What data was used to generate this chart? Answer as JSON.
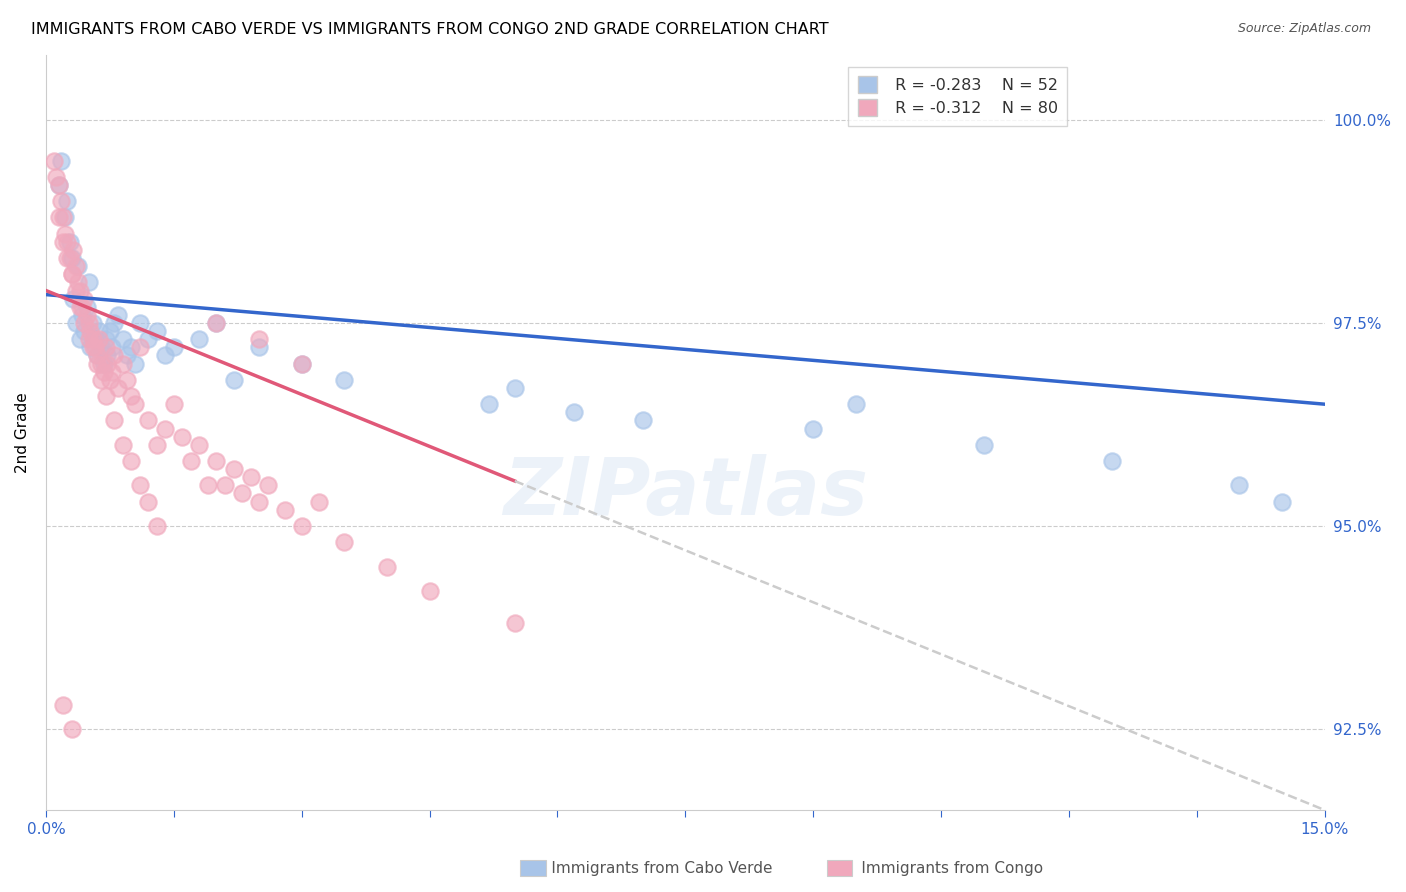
{
  "title": "IMMIGRANTS FROM CABO VERDE VS IMMIGRANTS FROM CONGO 2ND GRADE CORRELATION CHART",
  "source": "Source: ZipAtlas.com",
  "ylabel": "2nd Grade",
  "xmin": 0.0,
  "xmax": 15.0,
  "ymin": 91.5,
  "ymax": 100.8,
  "yticks": [
    92.5,
    95.0,
    97.5,
    100.0
  ],
  "yticklabels": [
    "92.5%",
    "95.0%",
    "97.5%",
    "100.0%"
  ],
  "legend_r_cabo": "-0.283",
  "legend_n_cabo": "52",
  "legend_r_congo": "-0.312",
  "legend_n_congo": "80",
  "cabo_verde_color": "#a8c4e8",
  "congo_color": "#f0a8bc",
  "trend_cabo_color": "#3366cc",
  "trend_congo_color": "#e05878",
  "trend_dashed_color": "#cccccc",
  "background_color": "#ffffff",
  "watermark": "ZIPatlas",
  "cabo_trend_x0": 0.0,
  "cabo_trend_y0": 97.85,
  "cabo_trend_x1": 15.0,
  "cabo_trend_y1": 96.5,
  "congo_trend_x0": 0.0,
  "congo_trend_y0": 97.9,
  "congo_trend_x1": 15.0,
  "congo_trend_y1": 91.5,
  "congo_solid_xmax": 5.5,
  "cabo_x": [
    0.15,
    0.18,
    0.22,
    0.25,
    0.28,
    0.3,
    0.32,
    0.35,
    0.38,
    0.4,
    0.42,
    0.45,
    0.48,
    0.5,
    0.52,
    0.55,
    0.58,
    0.6,
    0.62,
    0.65,
    0.68,
    0.7,
    0.72,
    0.75,
    0.78,
    0.8,
    0.85,
    0.9,
    0.95,
    1.0,
    1.05,
    1.1,
    1.2,
    1.3,
    1.4,
    1.5,
    1.8,
    2.0,
    2.2,
    2.5,
    3.0,
    3.5,
    5.2,
    5.5,
    6.2,
    7.0,
    9.0,
    9.5,
    11.0,
    12.5,
    14.0,
    14.5
  ],
  "cabo_y": [
    99.2,
    99.5,
    98.8,
    99.0,
    98.5,
    98.3,
    97.8,
    97.5,
    98.2,
    97.3,
    97.6,
    97.4,
    97.7,
    98.0,
    97.2,
    97.5,
    97.3,
    97.1,
    97.4,
    97.2,
    97.0,
    97.3,
    97.1,
    97.4,
    97.2,
    97.5,
    97.6,
    97.3,
    97.1,
    97.2,
    97.0,
    97.5,
    97.3,
    97.4,
    97.1,
    97.2,
    97.3,
    97.5,
    96.8,
    97.2,
    97.0,
    96.8,
    96.5,
    96.7,
    96.4,
    96.3,
    96.2,
    96.5,
    96.0,
    95.8,
    95.5,
    95.3
  ],
  "congo_x": [
    0.1,
    0.12,
    0.15,
    0.18,
    0.2,
    0.22,
    0.25,
    0.28,
    0.3,
    0.32,
    0.35,
    0.38,
    0.4,
    0.42,
    0.45,
    0.48,
    0.5,
    0.52,
    0.55,
    0.58,
    0.6,
    0.62,
    0.65,
    0.68,
    0.7,
    0.72,
    0.75,
    0.78,
    0.8,
    0.85,
    0.9,
    0.95,
    1.0,
    1.05,
    1.1,
    1.2,
    1.3,
    1.4,
    1.5,
    1.6,
    1.7,
    1.8,
    1.9,
    2.0,
    2.1,
    2.2,
    2.3,
    2.4,
    2.5,
    2.6,
    2.8,
    3.0,
    3.2,
    3.5,
    4.0,
    4.5,
    0.15,
    0.2,
    0.25,
    0.3,
    0.35,
    0.4,
    0.45,
    0.5,
    0.55,
    0.6,
    0.65,
    0.7,
    0.8,
    0.9,
    1.0,
    1.1,
    1.2,
    1.3,
    2.0,
    2.5,
    3.0,
    5.5,
    0.2,
    0.3
  ],
  "congo_y": [
    99.5,
    99.3,
    99.2,
    99.0,
    98.8,
    98.6,
    98.5,
    98.3,
    98.1,
    98.4,
    98.2,
    98.0,
    97.9,
    97.7,
    97.8,
    97.6,
    97.5,
    97.4,
    97.3,
    97.2,
    97.1,
    97.3,
    97.0,
    96.9,
    97.2,
    97.0,
    96.8,
    96.9,
    97.1,
    96.7,
    97.0,
    96.8,
    96.6,
    96.5,
    97.2,
    96.3,
    96.0,
    96.2,
    96.5,
    96.1,
    95.8,
    96.0,
    95.5,
    95.8,
    95.5,
    95.7,
    95.4,
    95.6,
    95.3,
    95.5,
    95.2,
    95.0,
    95.3,
    94.8,
    94.5,
    94.2,
    98.8,
    98.5,
    98.3,
    98.1,
    97.9,
    97.7,
    97.5,
    97.3,
    97.2,
    97.0,
    96.8,
    96.6,
    96.3,
    96.0,
    95.8,
    95.5,
    95.3,
    95.0,
    97.5,
    97.3,
    97.0,
    93.8,
    92.8,
    92.5
  ]
}
